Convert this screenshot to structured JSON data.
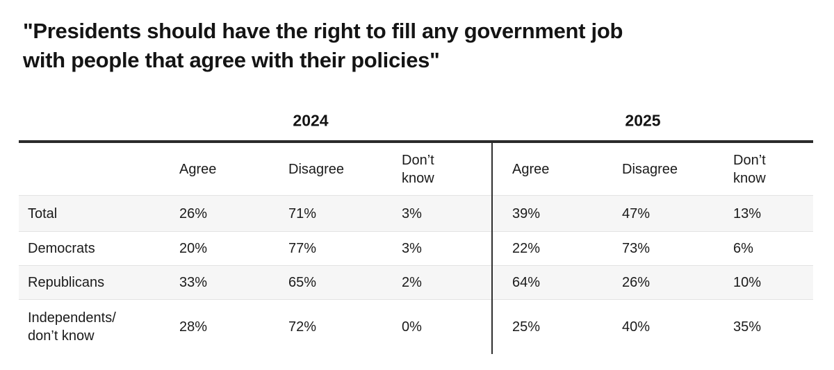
{
  "title": {
    "line1": "\"Presidents should have the right to fill any government job",
    "line2": "with people that agree with their policies\""
  },
  "table": {
    "years": [
      "2024",
      "2025"
    ],
    "header_cells": [
      "",
      "Agree",
      "Disagree",
      "Don’t\nknow",
      "Agree",
      "Disagree",
      "Don’t\nknow"
    ],
    "rows": [
      {
        "label": "Total",
        "values": [
          "26%",
          "71%",
          "3%",
          "39%",
          "47%",
          "13%"
        ]
      },
      {
        "label": "Democrats",
        "values": [
          "20%",
          "77%",
          "3%",
          "22%",
          "73%",
          "6%"
        ]
      },
      {
        "label": "Republicans",
        "values": [
          "33%",
          "65%",
          "2%",
          "64%",
          "26%",
          "10%"
        ]
      },
      {
        "label": "Independents/\ndon’t know",
        "values": [
          "28%",
          "72%",
          "0%",
          "25%",
          "40%",
          "35%"
        ]
      }
    ]
  },
  "colors": {
    "text": "#141414",
    "thick_rule": "#2b2b2b",
    "vertical_divider": "#2f2f2f",
    "row_stripe": "#f6f6f6",
    "row_separator": "#e3e3e3",
    "background": "#ffffff"
  },
  "chart_data": {
    "type": "table",
    "title": "\"Presidents should have the right to fill any government job with people that agree with their policies\"",
    "year_groups": [
      "2024",
      "2025"
    ],
    "column_headers": [
      "Agree",
      "Disagree",
      "Don’t know"
    ],
    "row_labels": [
      "Total",
      "Democrats",
      "Republicans",
      "Independents/don’t know"
    ],
    "series": [
      {
        "name": "2024 Agree",
        "values": [
          26,
          20,
          33,
          28
        ]
      },
      {
        "name": "2024 Disagree",
        "values": [
          71,
          77,
          65,
          72
        ]
      },
      {
        "name": "2024 Don’t know",
        "values": [
          3,
          3,
          2,
          0
        ]
      },
      {
        "name": "2025 Agree",
        "values": [
          39,
          22,
          64,
          25
        ]
      },
      {
        "name": "2025 Disagree",
        "values": [
          47,
          73,
          26,
          40
        ]
      },
      {
        "name": "2025 Don’t know",
        "values": [
          13,
          6,
          10,
          35
        ]
      }
    ],
    "unit": "%",
    "layout": {
      "striped_rows": [
        0,
        2
      ],
      "divider_between_year_groups": true
    }
  }
}
